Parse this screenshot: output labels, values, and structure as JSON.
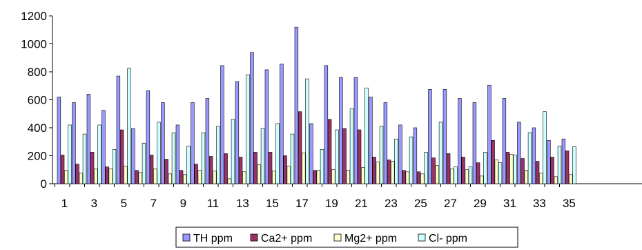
{
  "chart_data": {
    "type": "bar",
    "title": "",
    "xlabel": "",
    "ylabel": "",
    "ylim": [
      0,
      1200
    ],
    "y_ticks": [
      0,
      200,
      400,
      600,
      800,
      1000,
      1200
    ],
    "categories": [
      1,
      2,
      3,
      4,
      5,
      6,
      7,
      8,
      9,
      10,
      11,
      12,
      13,
      14,
      15,
      16,
      17,
      18,
      19,
      20,
      21,
      22,
      23,
      24,
      25,
      26,
      27,
      28,
      29,
      30,
      31,
      32,
      33,
      34,
      35
    ],
    "x_tick_labels": [
      "1",
      "3",
      "5",
      "7",
      "9",
      "11",
      "13",
      "15",
      "17",
      "19",
      "21",
      "23",
      "25",
      "27",
      "29",
      "31",
      "33",
      "35"
    ],
    "grid": false,
    "legend_position": "bottom",
    "series": [
      {
        "name": "TH ppm",
        "color": "#9999FF",
        "values": [
          620,
          580,
          640,
          525,
          770,
          395,
          665,
          580,
          420,
          580,
          610,
          845,
          730,
          940,
          815,
          855,
          1120,
          430,
          845,
          760,
          760,
          620,
          580,
          420,
          400,
          675,
          675,
          610,
          580,
          705,
          610,
          440,
          400,
          310,
          320
        ]
      },
      {
        "name": "Ca2+ ppm",
        "color": "#993366",
        "values": [
          205,
          140,
          225,
          120,
          385,
          95,
          205,
          175,
          95,
          140,
          195,
          215,
          190,
          225,
          225,
          200,
          515,
          95,
          460,
          395,
          385,
          190,
          170,
          95,
          85,
          185,
          215,
          190,
          150,
          310,
          225,
          180,
          160,
          190,
          235
        ]
      },
      {
        "name": "Mg2+ ppm",
        "color": "#FFFFCC",
        "values": [
          95,
          75,
          105,
          105,
          125,
          80,
          105,
          70,
          65,
          95,
          90,
          35,
          85,
          135,
          90,
          125,
          220,
          95,
          100,
          95,
          115,
          155,
          160,
          85,
          70,
          130,
          105,
          100,
          55,
          170,
          210,
          95,
          75,
          50,
          65
        ]
      },
      {
        "name": "Cl- ppm",
        "color": "#CCFFFF",
        "values": [
          420,
          355,
          420,
          245,
          825,
          290,
          440,
          365,
          270,
          365,
          410,
          460,
          780,
          395,
          430,
          355,
          750,
          245,
          385,
          535,
          685,
          410,
          320,
          335,
          225,
          440,
          120,
          120,
          225,
          150,
          205,
          365,
          515,
          270,
          265
        ]
      }
    ]
  }
}
